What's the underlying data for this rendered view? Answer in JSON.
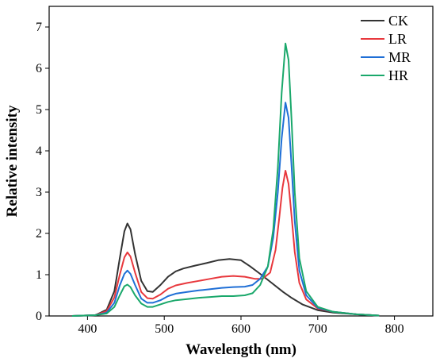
{
  "chart_data": {
    "type": "line",
    "title": "",
    "xlabel": "Wavelength (nm)",
    "ylabel": "Relative intensity",
    "xlim": [
      350,
      850
    ],
    "ylim": [
      0,
      7.5
    ],
    "xticks": [
      400,
      500,
      600,
      700,
      800
    ],
    "yticks": [
      0,
      1,
      2,
      3,
      4,
      5,
      6,
      7
    ],
    "grid": false,
    "legend": "top-right",
    "series": [
      {
        "name": "CK",
        "color": "#333333",
        "points": [
          [
            380,
            0
          ],
          [
            410,
            0.02
          ],
          [
            425,
            0.15
          ],
          [
            435,
            0.6
          ],
          [
            442,
            1.4
          ],
          [
            448,
            2.05
          ],
          [
            452,
            2.24
          ],
          [
            456,
            2.1
          ],
          [
            462,
            1.5
          ],
          [
            470,
            0.85
          ],
          [
            478,
            0.6
          ],
          [
            485,
            0.58
          ],
          [
            495,
            0.75
          ],
          [
            505,
            0.95
          ],
          [
            515,
            1.08
          ],
          [
            525,
            1.15
          ],
          [
            540,
            1.22
          ],
          [
            555,
            1.28
          ],
          [
            570,
            1.35
          ],
          [
            585,
            1.38
          ],
          [
            600,
            1.35
          ],
          [
            612,
            1.2
          ],
          [
            625,
            1.02
          ],
          [
            640,
            0.8
          ],
          [
            655,
            0.58
          ],
          [
            665,
            0.45
          ],
          [
            680,
            0.28
          ],
          [
            700,
            0.14
          ],
          [
            720,
            0.08
          ],
          [
            750,
            0.04
          ],
          [
            780,
            0.01
          ]
        ]
      },
      {
        "name": "LR",
        "color": "#e8383d",
        "points": [
          [
            380,
            0
          ],
          [
            410,
            0.02
          ],
          [
            425,
            0.12
          ],
          [
            435,
            0.45
          ],
          [
            442,
            1.0
          ],
          [
            448,
            1.42
          ],
          [
            452,
            1.54
          ],
          [
            456,
            1.44
          ],
          [
            462,
            1.05
          ],
          [
            470,
            0.58
          ],
          [
            478,
            0.43
          ],
          [
            485,
            0.42
          ],
          [
            495,
            0.52
          ],
          [
            505,
            0.66
          ],
          [
            515,
            0.74
          ],
          [
            530,
            0.8
          ],
          [
            545,
            0.85
          ],
          [
            560,
            0.9
          ],
          [
            575,
            0.95
          ],
          [
            590,
            0.97
          ],
          [
            605,
            0.95
          ],
          [
            618,
            0.9
          ],
          [
            628,
            0.9
          ],
          [
            638,
            1.05
          ],
          [
            645,
            1.6
          ],
          [
            650,
            2.4
          ],
          [
            654,
            3.1
          ],
          [
            658,
            3.52
          ],
          [
            662,
            3.2
          ],
          [
            666,
            2.4
          ],
          [
            670,
            1.55
          ],
          [
            676,
            0.8
          ],
          [
            685,
            0.4
          ],
          [
            700,
            0.18
          ],
          [
            720,
            0.1
          ],
          [
            750,
            0.04
          ],
          [
            780,
            0.01
          ]
        ]
      },
      {
        "name": "MR",
        "color": "#1f6fd6",
        "points": [
          [
            380,
            0
          ],
          [
            410,
            0.02
          ],
          [
            425,
            0.08
          ],
          [
            435,
            0.32
          ],
          [
            442,
            0.74
          ],
          [
            448,
            1.02
          ],
          [
            452,
            1.1
          ],
          [
            456,
            1.02
          ],
          [
            462,
            0.75
          ],
          [
            470,
            0.42
          ],
          [
            478,
            0.32
          ],
          [
            485,
            0.32
          ],
          [
            495,
            0.38
          ],
          [
            505,
            0.48
          ],
          [
            515,
            0.54
          ],
          [
            530,
            0.58
          ],
          [
            545,
            0.62
          ],
          [
            560,
            0.65
          ],
          [
            575,
            0.68
          ],
          [
            590,
            0.7
          ],
          [
            605,
            0.71
          ],
          [
            615,
            0.75
          ],
          [
            625,
            0.9
          ],
          [
            635,
            1.2
          ],
          [
            642,
            1.9
          ],
          [
            648,
            3.0
          ],
          [
            653,
            4.3
          ],
          [
            658,
            5.17
          ],
          [
            662,
            4.8
          ],
          [
            666,
            3.6
          ],
          [
            670,
            2.3
          ],
          [
            676,
            1.1
          ],
          [
            685,
            0.5
          ],
          [
            700,
            0.2
          ],
          [
            720,
            0.1
          ],
          [
            750,
            0.04
          ],
          [
            780,
            0.01
          ]
        ]
      },
      {
        "name": "HR",
        "color": "#1aa86b",
        "points": [
          [
            380,
            0
          ],
          [
            410,
            0.02
          ],
          [
            425,
            0.06
          ],
          [
            435,
            0.22
          ],
          [
            442,
            0.5
          ],
          [
            448,
            0.72
          ],
          [
            452,
            0.76
          ],
          [
            456,
            0.7
          ],
          [
            462,
            0.5
          ],
          [
            470,
            0.3
          ],
          [
            478,
            0.22
          ],
          [
            485,
            0.22
          ],
          [
            495,
            0.28
          ],
          [
            505,
            0.34
          ],
          [
            515,
            0.38
          ],
          [
            530,
            0.41
          ],
          [
            545,
            0.44
          ],
          [
            560,
            0.46
          ],
          [
            575,
            0.48
          ],
          [
            590,
            0.48
          ],
          [
            605,
            0.5
          ],
          [
            615,
            0.55
          ],
          [
            625,
            0.75
          ],
          [
            635,
            1.2
          ],
          [
            642,
            2.1
          ],
          [
            648,
            3.6
          ],
          [
            653,
            5.4
          ],
          [
            658,
            6.6
          ],
          [
            662,
            6.2
          ],
          [
            666,
            4.7
          ],
          [
            670,
            3.0
          ],
          [
            676,
            1.4
          ],
          [
            685,
            0.6
          ],
          [
            700,
            0.22
          ],
          [
            720,
            0.1
          ],
          [
            750,
            0.04
          ],
          [
            780,
            0.01
          ]
        ]
      }
    ]
  }
}
